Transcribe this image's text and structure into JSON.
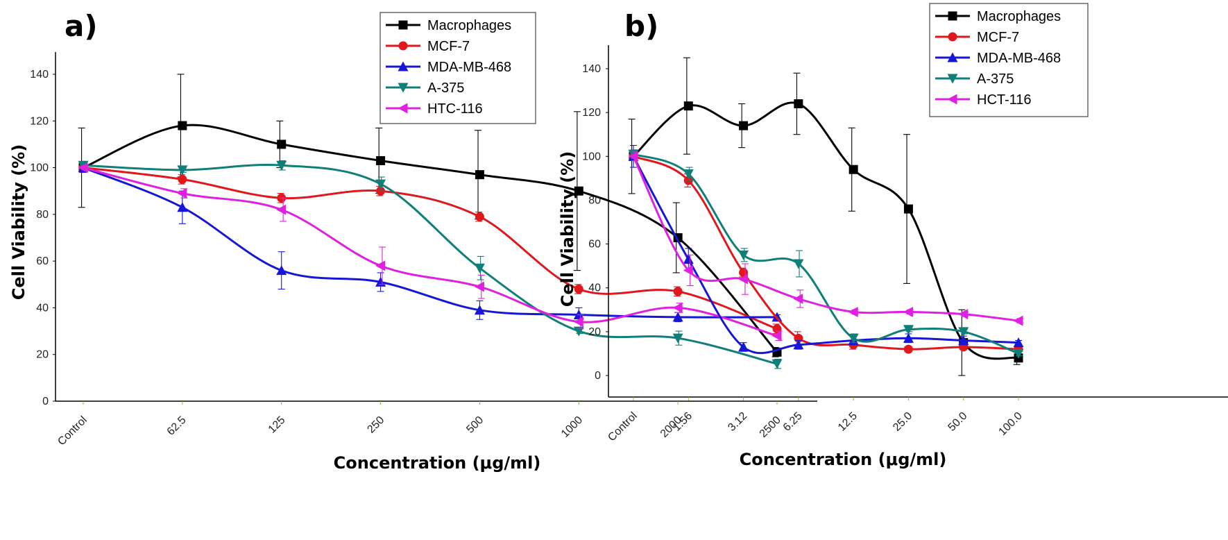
{
  "chart_data": [
    {
      "type": "line",
      "panel_label": "a)",
      "xlabel": "Concentration (μg/ml)",
      "ylabel": "Cell Viability (%)",
      "categories": [
        "Control",
        "62.5",
        "125",
        "250",
        "500",
        "1000",
        "2000",
        "2500"
      ],
      "yticks": [
        "0",
        "20",
        "40",
        "60",
        "80",
        "100",
        "120",
        "140"
      ],
      "ylim": [
        0,
        150
      ],
      "grid": false,
      "legend_position": "top-right",
      "series": [
        {
          "name": "Macrophages",
          "color": "#000000",
          "marker": "square",
          "values": [
            100,
            118,
            110,
            103,
            97,
            90,
            70,
            21
          ],
          "errors": [
            17,
            22,
            10,
            14,
            19,
            34,
            15,
            2
          ]
        },
        {
          "name": "MCF-7",
          "color": "#e0171c",
          "marker": "circle",
          "values": [
            100,
            95,
            87,
            90,
            79,
            48,
            47,
            31
          ],
          "errors": [
            2,
            2,
            2,
            2,
            2,
            2,
            2,
            2
          ]
        },
        {
          "name": "MDA-MB-468",
          "color": "#1616d6",
          "marker": "triangle-up",
          "values": [
            100,
            83,
            56,
            51,
            39,
            37,
            36,
            36
          ],
          "errors": [
            2,
            7,
            8,
            4,
            4,
            3,
            2,
            1
          ]
        },
        {
          "name": "A-375",
          "color": "#0f7f77",
          "marker": "triangle-down",
          "values": [
            101,
            99,
            101,
            93,
            57,
            30,
            27,
            16
          ],
          "errors": [
            1,
            1,
            2,
            3,
            5,
            1,
            3,
            2
          ]
        },
        {
          "name": "HTC-116",
          "color": "#e020e0",
          "marker": "triangle-left",
          "values": [
            100,
            89,
            82,
            58,
            49,
            34,
            40,
            28
          ],
          "errors": [
            1,
            2,
            5,
            8,
            5,
            3,
            2,
            2
          ]
        }
      ]
    },
    {
      "type": "line",
      "panel_label": "b)",
      "xlabel": "Concentration  (μg/ml)",
      "ylabel": "Cell Viability (%)",
      "categories": [
        "Control",
        "1.56",
        "3.12",
        "6.25",
        "12.5",
        "25.0",
        "50.0",
        "100.0"
      ],
      "yticks": [
        "0",
        "20",
        "40",
        "60",
        "80",
        "100",
        "120",
        "140"
      ],
      "ylim": [
        -10,
        150
      ],
      "grid": false,
      "legend_position": "top-right",
      "series": [
        {
          "name": "Macrophages",
          "color": "#000000",
          "marker": "square",
          "values": [
            100,
            123,
            114,
            124,
            94,
            76,
            15,
            8
          ],
          "errors": [
            17,
            22,
            10,
            14,
            19,
            34,
            15,
            3
          ]
        },
        {
          "name": "MCF-7",
          "color": "#e0171c",
          "marker": "circle",
          "values": [
            100,
            89,
            47,
            17,
            14,
            12,
            13,
            12
          ],
          "errors": [
            2,
            3,
            2,
            3,
            2,
            1,
            1,
            1
          ]
        },
        {
          "name": "MDA-MB-468",
          "color": "#1616d6",
          "marker": "triangle-up",
          "values": [
            100,
            53,
            13,
            14,
            16,
            17,
            16,
            15
          ],
          "errors": [
            5,
            5,
            2,
            2,
            2,
            2,
            2,
            1
          ]
        },
        {
          "name": "A-375",
          "color": "#0f7f77",
          "marker": "triangle-down",
          "values": [
            101,
            92,
            55,
            51,
            17,
            21,
            20,
            10
          ],
          "errors": [
            2,
            3,
            3,
            6,
            2,
            1,
            1,
            1
          ]
        },
        {
          "name": "HCT-116",
          "color": "#e020e0",
          "marker": "triangle-left",
          "values": [
            100,
            48,
            44,
            35,
            29,
            29,
            28,
            25
          ],
          "errors": [
            2,
            7,
            7,
            4,
            1,
            1,
            1,
            1
          ]
        }
      ]
    }
  ]
}
